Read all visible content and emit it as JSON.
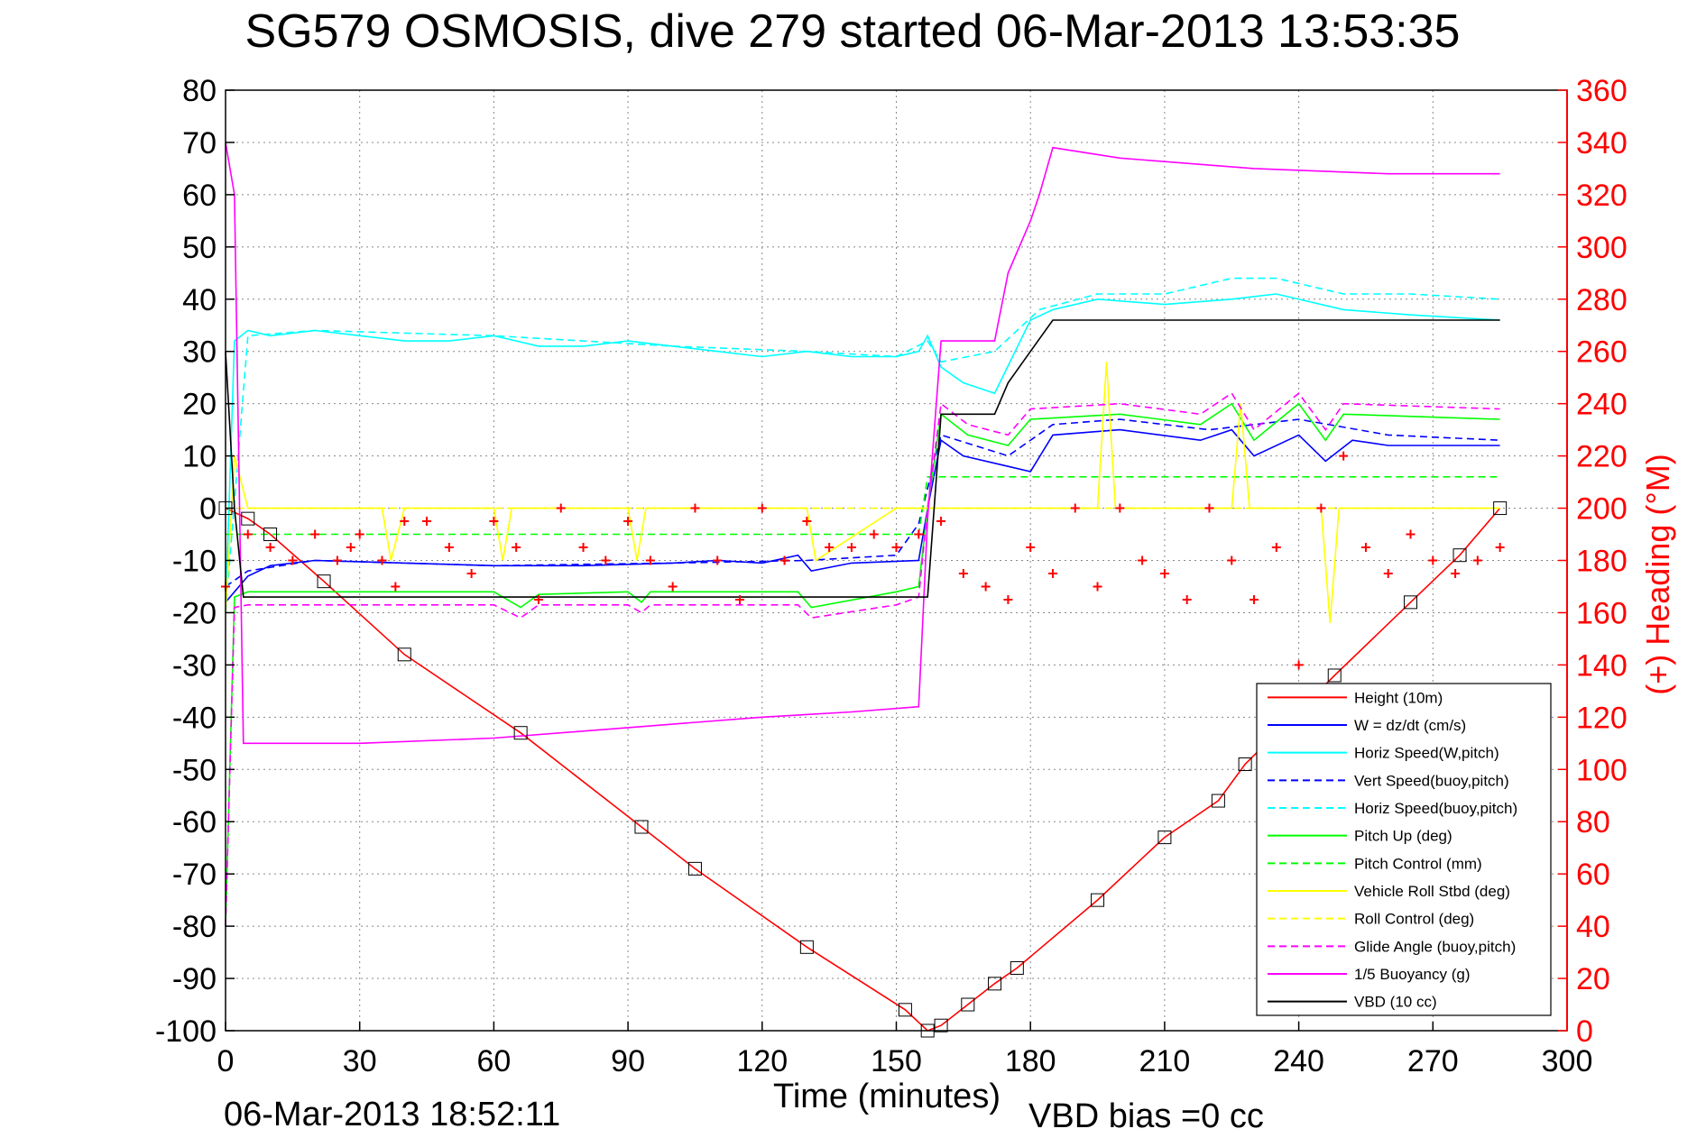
{
  "figure": {
    "title": "SG579 OSMOSIS, dive 279 started 06-Mar-2013 13:53:35",
    "timestamp": "06-Mar-2013 18:52:11",
    "vbd_bias": "VBD bias =0 cc"
  },
  "chart_data": {
    "type": "line",
    "title": "SG579 OSMOSIS, dive 279 started 06-Mar-2013 13:53:35",
    "xlabel": "Time (minutes)",
    "ylabel": "",
    "y2label": "(+) Heading (°M)",
    "xlim": [
      0,
      300
    ],
    "ylim": [
      -100,
      80
    ],
    "y2lim": [
      0,
      360
    ],
    "x_ticks": [
      0,
      30,
      60,
      90,
      120,
      150,
      180,
      210,
      240,
      270,
      300
    ],
    "y_ticks": [
      80,
      70,
      60,
      50,
      40,
      30,
      20,
      10,
      0,
      -10,
      -20,
      -30,
      -40,
      -50,
      -60,
      -70,
      -80,
      -90,
      -100
    ],
    "y2_ticks": [
      360,
      340,
      320,
      300,
      280,
      260,
      240,
      220,
      200,
      180,
      160,
      140,
      120,
      100,
      80,
      60,
      40,
      20,
      0
    ],
    "grid": true,
    "legend_position": "bottom-right",
    "colors": {
      "height": "#ff0000",
      "w": "#0000ff",
      "horiz_speed": "#00ffff",
      "pitch": "#00ff00",
      "roll": "#ffff00",
      "glide": "#ff00ff",
      "buoyancy": "#ff00ff",
      "vbd": "#000000",
      "heading": "#ff0000"
    },
    "series": [
      {
        "name": "Height (10m)",
        "color": "#ff0000",
        "dash": "solid",
        "x": [
          0,
          5,
          10,
          22,
          40,
          66,
          93,
          105,
          130,
          152,
          157,
          160,
          166,
          172,
          177,
          195,
          210,
          222,
          228,
          248,
          265,
          276,
          285
        ],
        "y": [
          0,
          -2,
          -5,
          -14,
          -28,
          -43,
          -61,
          -69,
          -84,
          -96,
          -100,
          -99,
          -95,
          -91,
          -88,
          -75,
          -63,
          -56,
          -49,
          -32,
          -18,
          -9,
          0
        ]
      },
      {
        "name": "W = dz/dt (cm/s)",
        "color": "#0000ff",
        "dash": "solid",
        "x": [
          0,
          2,
          5,
          10,
          20,
          40,
          60,
          80,
          100,
          110,
          120,
          128,
          131,
          140,
          155,
          157,
          160,
          165,
          175,
          180,
          185,
          200,
          218,
          225,
          230,
          240,
          246,
          252,
          260,
          285
        ],
        "y": [
          -18,
          -16,
          -13,
          -11,
          -10,
          -10.5,
          -11,
          -11,
          -10.5,
          -10,
          -10.5,
          -9,
          -12,
          -10.5,
          -10,
          0,
          13,
          10,
          8,
          7,
          14,
          15,
          13,
          15,
          10,
          14,
          9,
          13,
          12,
          12
        ]
      },
      {
        "name": "Horiz Speed(W,pitch)",
        "color": "#00ffff",
        "dash": "solid",
        "x": [
          0,
          2,
          5,
          10,
          20,
          30,
          40,
          50,
          60,
          70,
          80,
          90,
          100,
          110,
          120,
          130,
          140,
          150,
          155,
          157,
          160,
          165,
          172,
          180,
          185,
          195,
          210,
          225,
          235,
          250,
          265,
          285
        ],
        "y": [
          -20,
          32,
          34,
          33,
          34,
          33,
          32,
          32,
          33,
          31,
          31,
          32,
          31,
          30,
          29,
          30,
          29,
          29,
          30,
          33,
          27,
          24,
          22,
          36,
          38,
          40,
          39,
          40,
          41,
          38,
          37,
          36
        ]
      },
      {
        "name": "Vert Speed(buoy,pitch)",
        "color": "#0000ff",
        "dash": "dashed",
        "x": [
          0,
          5,
          20,
          60,
          100,
          130,
          150,
          155,
          160,
          175,
          185,
          200,
          220,
          240,
          260,
          285
        ],
        "y": [
          -15,
          -12,
          -10,
          -11,
          -10.5,
          -10,
          -9,
          -3,
          14,
          10,
          16,
          17,
          15,
          17,
          14,
          13
        ]
      },
      {
        "name": "Horiz Speed(buoy,pitch)",
        "color": "#00ffff",
        "dash": "dashed",
        "x": [
          0,
          5,
          20,
          60,
          100,
          130,
          150,
          157,
          160,
          172,
          182,
          195,
          210,
          225,
          235,
          250,
          265,
          285
        ],
        "y": [
          -20,
          33,
          34,
          33,
          31,
          30,
          29,
          32,
          28,
          30,
          38,
          41,
          41,
          44,
          44,
          41,
          41,
          40
        ]
      },
      {
        "name": "Pitch Up (deg)",
        "color": "#00ff00",
        "dash": "solid",
        "x": [
          0,
          2,
          5,
          20,
          40,
          60,
          66,
          70,
          90,
          93,
          95,
          120,
          128,
          131,
          150,
          155,
          157,
          160,
          166,
          175,
          180,
          200,
          218,
          225,
          230,
          240,
          246,
          250,
          285
        ],
        "y": [
          -80,
          -17,
          -16,
          -16,
          -16,
          -16,
          -19,
          -16.5,
          -16,
          -18,
          -16,
          -16,
          -16,
          -19,
          -16,
          -15,
          0,
          18,
          14,
          12,
          17,
          18,
          16,
          20,
          13,
          20,
          13,
          18,
          17
        ]
      },
      {
        "name": "Pitch Control (mm)",
        "color": "#00ff00",
        "dash": "dashed",
        "x": [
          0,
          5,
          155,
          157,
          180,
          285
        ],
        "y": [
          -5,
          -5,
          -5,
          6,
          6,
          6
        ]
      },
      {
        "name": "Vehicle Roll Stbd (deg)",
        "color": "#ffff00",
        "dash": "solid",
        "x": [
          0,
          2,
          5,
          30,
          35,
          37,
          40,
          60,
          62,
          64,
          70,
          90,
          92,
          94,
          100,
          120,
          130,
          132,
          150,
          155,
          158,
          180,
          195,
          197,
          199,
          210,
          225,
          227,
          229,
          245,
          247,
          249,
          285
        ],
        "y": [
          -20,
          10,
          0,
          0,
          0,
          -10,
          0,
          0,
          -10,
          0,
          0,
          0,
          -10,
          0,
          0,
          0,
          0,
          -10,
          0,
          0,
          0,
          0,
          0,
          28,
          0,
          0,
          0,
          20,
          0,
          0,
          -22,
          0,
          0
        ]
      },
      {
        "name": "Roll Control (deg)",
        "color": "#ffff00",
        "dash": "dashed",
        "x": [
          0,
          5,
          155,
          157,
          285
        ],
        "y": [
          0,
          0,
          0,
          0,
          0
        ]
      },
      {
        "name": "Glide Angle (buoy,pitch)",
        "color": "#ff00ff",
        "dash": "dashed",
        "x": [
          0,
          2,
          5,
          20,
          40,
          60,
          66,
          70,
          90,
          93,
          95,
          120,
          128,
          131,
          150,
          155,
          157,
          160,
          166,
          175,
          180,
          200,
          218,
          225,
          230,
          240,
          246,
          250,
          285
        ],
        "y": [
          -80,
          -19,
          -18.5,
          -18.5,
          -18.5,
          -18.5,
          -21,
          -18.5,
          -18.5,
          -20,
          -18.5,
          -18.5,
          -18.5,
          -21,
          -18.5,
          -17,
          0,
          20,
          16,
          14,
          19,
          20,
          18,
          22,
          15,
          22,
          15,
          20,
          19
        ]
      },
      {
        "name": "1/5 Buoyancy (g)",
        "color": "#ff00ff",
        "dash": "solid",
        "x": [
          0,
          2,
          4,
          30,
          60,
          90,
          120,
          140,
          155,
          157,
          160,
          172,
          175,
          180,
          182,
          185,
          200,
          230,
          260,
          285
        ],
        "y": [
          70,
          60,
          -45,
          -45,
          -44,
          -42,
          -40,
          -39,
          -38,
          -2,
          32,
          32,
          45,
          55,
          60,
          69,
          67,
          65,
          64,
          64
        ]
      },
      {
        "name": "VBD (10 cc)",
        "color": "#000000",
        "dash": "solid",
        "x": [
          0,
          2,
          4,
          155,
          157,
          160,
          172,
          175,
          180,
          185,
          200,
          285
        ],
        "y": [
          30,
          0,
          -17,
          -17,
          -17,
          18,
          18,
          24,
          30,
          36,
          36,
          36
        ]
      }
    ],
    "heading": {
      "name": "(+) Heading (°M)",
      "color": "#ff0000",
      "marker": "+",
      "x": [
        0,
        5,
        10,
        15,
        20,
        25,
        28,
        30,
        35,
        38,
        40,
        45,
        50,
        55,
        60,
        65,
        70,
        75,
        80,
        85,
        90,
        95,
        100,
        105,
        110,
        115,
        120,
        125,
        130,
        135,
        140,
        145,
        150,
        155,
        160,
        165,
        170,
        175,
        180,
        185,
        190,
        195,
        200,
        205,
        210,
        215,
        220,
        225,
        230,
        235,
        240,
        245,
        250,
        255,
        260,
        265,
        270,
        275,
        280,
        285
      ],
      "y": [
        170,
        190,
        185,
        180,
        190,
        180,
        185,
        190,
        180,
        170,
        195,
        195,
        185,
        175,
        195,
        185,
        165,
        200,
        185,
        180,
        195,
        180,
        170,
        200,
        180,
        165,
        200,
        180,
        195,
        185,
        185,
        190,
        185,
        190,
        195,
        175,
        170,
        165,
        185,
        175,
        200,
        170,
        200,
        180,
        175,
        165,
        200,
        180,
        165,
        185,
        140,
        200,
        220,
        185,
        175,
        190,
        180,
        175,
        180,
        185
      ]
    }
  }
}
